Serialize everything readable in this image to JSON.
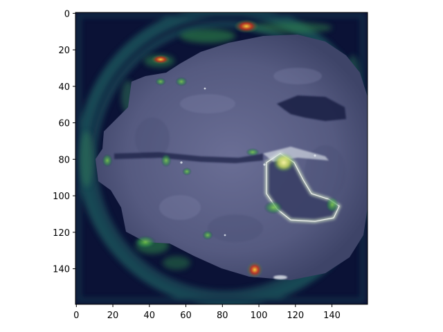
{
  "figure": {
    "type": "heatmap",
    "description_visible": "",
    "x_ticks": [
      "0",
      "20",
      "40",
      "60",
      "80",
      "100",
      "120",
      "140"
    ],
    "y_ticks": [
      "0",
      "20",
      "40",
      "60",
      "80",
      "100",
      "120",
      "140"
    ],
    "xlim": [
      0,
      160
    ],
    "ylim": [
      160,
      0
    ],
    "colors": {
      "background_dark": "#0b1236",
      "tissue": "#5b5f86",
      "tissue_light": "#8a8fb4",
      "hot_yellow": "#f4f28a",
      "hot_red": "#c8321e",
      "hot_orange": "#e07a2a",
      "mid_green": "#2f8a4a",
      "mid_teal": "#2c6a70"
    }
  },
  "chart_data": {
    "type": "heatmap",
    "title": "",
    "xlabel": "",
    "ylabel": "",
    "xlim": [
      0,
      160
    ],
    "ylim": [
      160,
      0
    ],
    "x_ticks": [
      0,
      20,
      40,
      60,
      80,
      100,
      120,
      140
    ],
    "y_ticks": [
      0,
      20,
      40,
      60,
      80,
      100,
      120,
      140
    ],
    "grid": false,
    "legend": "none",
    "colorbar": false
  }
}
